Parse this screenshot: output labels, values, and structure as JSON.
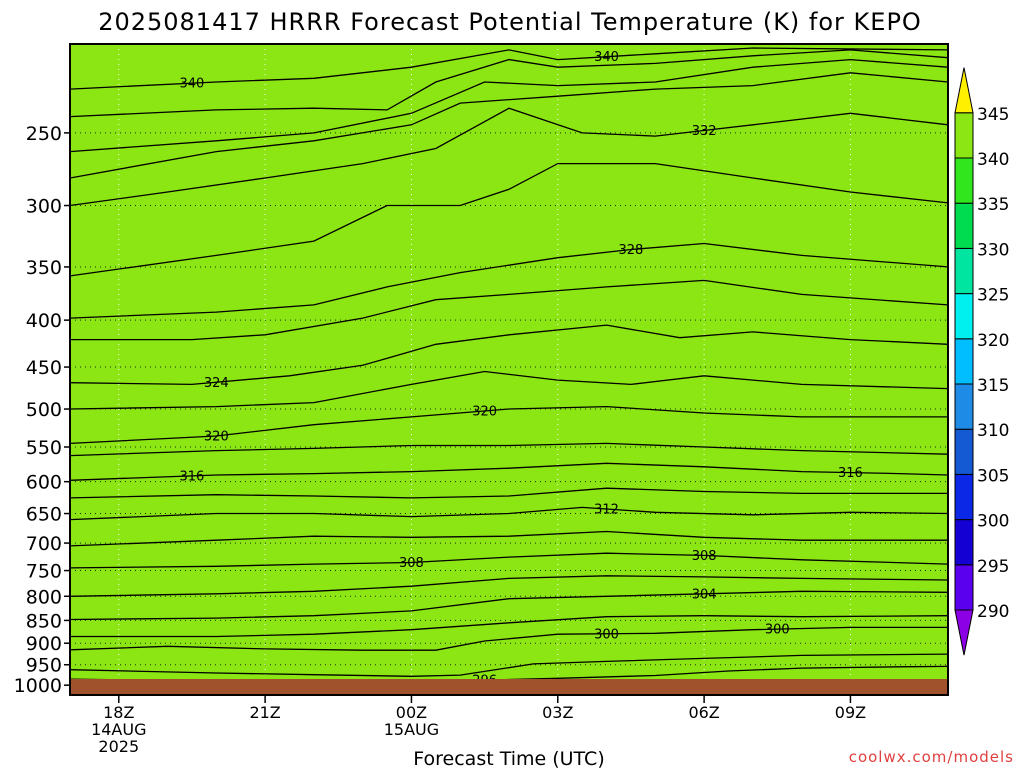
{
  "title": "2025081417 HRRR Forecast Potential Temperature (K) for KEPO",
  "watermark": "coolwx.com/models",
  "chart_data": {
    "type": "heatmap",
    "title": "2025081417 HRRR Forecast Potential Temperature (K) for KEPO",
    "xlabel": "Forecast Time (UTC)",
    "ylabel": "",
    "x_ticks": [
      {
        "hour": 0,
        "lines": [
          "18Z",
          "14AUG",
          "2025"
        ]
      },
      {
        "hour": 3,
        "lines": [
          "21Z"
        ]
      },
      {
        "hour": 6,
        "lines": [
          "00Z",
          "15AUG"
        ]
      },
      {
        "hour": 9,
        "lines": [
          "03Z"
        ]
      },
      {
        "hour": 12,
        "lines": [
          "06Z"
        ]
      },
      {
        "hour": 15,
        "lines": [
          "09Z"
        ]
      }
    ],
    "x_range_hours": [
      -1,
      17
    ],
    "y_scale": "log",
    "y_ticks": [
      250,
      300,
      350,
      400,
      450,
      500,
      550,
      600,
      650,
      700,
      750,
      800,
      850,
      900,
      950,
      1000
    ],
    "y_range_hpa": [
      200,
      1025
    ],
    "grid": true,
    "colorbar": {
      "labels": [
        290,
        295,
        300,
        305,
        310,
        315,
        320,
        325,
        330,
        335,
        340,
        345
      ],
      "colors": [
        "#8c00e6",
        "#5a00ee",
        "#1400d2",
        "#0a28e6",
        "#145ad2",
        "#1e8ce6",
        "#00beff",
        "#00f0f0",
        "#00e6a0",
        "#00dc50",
        "#32e61e",
        "#8ce614",
        "#d2f000",
        "#fff000"
      ],
      "extend": "both"
    },
    "terrain_color": "#a0522d",
    "contours": [
      {
        "value": 296,
        "label": "296",
        "points": [
          [
            -1,
            985
          ],
          [
            2,
            990
          ],
          [
            5,
            993
          ],
          [
            7,
            989
          ],
          [
            9,
            983
          ],
          [
            11,
            976
          ],
          [
            12.5,
            965
          ],
          [
            14,
            958
          ],
          [
            16,
            955
          ],
          [
            17,
            954
          ]
        ]
      },
      {
        "value": 298,
        "label": "",
        "points": [
          [
            -1,
            962
          ],
          [
            2,
            970
          ],
          [
            4,
            974
          ],
          [
            6,
            978
          ],
          [
            7,
            975
          ],
          [
            8.5,
            948
          ],
          [
            10,
            942
          ],
          [
            12,
            935
          ],
          [
            14,
            928
          ],
          [
            17,
            925
          ]
        ]
      },
      {
        "value": 300,
        "label": "300",
        "points": [
          [
            -1,
            915
          ],
          [
            1,
            907
          ],
          [
            3,
            913
          ],
          [
            5,
            916
          ],
          [
            6.5,
            916
          ],
          [
            7.5,
            895
          ],
          [
            9,
            880
          ],
          [
            11,
            878
          ],
          [
            13,
            870
          ],
          [
            15,
            865
          ],
          [
            17,
            865
          ]
        ]
      },
      {
        "value": 302,
        "label": "",
        "points": [
          [
            -1,
            885
          ],
          [
            2,
            885
          ],
          [
            4,
            880
          ],
          [
            6,
            870
          ],
          [
            8,
            855
          ],
          [
            10,
            842
          ],
          [
            12,
            840
          ],
          [
            14,
            842
          ],
          [
            17,
            840
          ]
        ]
      },
      {
        "value": 304,
        "label": "304",
        "points": [
          [
            -1,
            848
          ],
          [
            2,
            845
          ],
          [
            4,
            840
          ],
          [
            6,
            830
          ],
          [
            8,
            805
          ],
          [
            10,
            800
          ],
          [
            12,
            795
          ],
          [
            14,
            790
          ],
          [
            17,
            792
          ]
        ]
      },
      {
        "value": 306,
        "label": "",
        "points": [
          [
            -1,
            800
          ],
          [
            2,
            795
          ],
          [
            4,
            790
          ],
          [
            6,
            780
          ],
          [
            8,
            765
          ],
          [
            10,
            760
          ],
          [
            12,
            762
          ],
          [
            14,
            765
          ],
          [
            17,
            768
          ]
        ]
      },
      {
        "value": 308,
        "label": "308",
        "points": [
          [
            -1,
            745
          ],
          [
            2,
            742
          ],
          [
            4,
            738
          ],
          [
            6,
            735
          ],
          [
            8,
            725
          ],
          [
            10,
            718
          ],
          [
            12,
            722
          ],
          [
            14,
            730
          ],
          [
            17,
            738
          ]
        ]
      },
      {
        "value": 310,
        "label": "",
        "points": [
          [
            -1,
            705
          ],
          [
            2,
            695
          ],
          [
            4,
            688
          ],
          [
            6,
            690
          ],
          [
            8,
            688
          ],
          [
            10,
            680
          ],
          [
            12,
            690
          ],
          [
            14,
            695
          ],
          [
            17,
            695
          ]
        ]
      },
      {
        "value": 312,
        "label": "312",
        "points": [
          [
            -1,
            660
          ],
          [
            2,
            650
          ],
          [
            4,
            650
          ],
          [
            6,
            655
          ],
          [
            8,
            650
          ],
          [
            9.5,
            640
          ],
          [
            11,
            648
          ],
          [
            13,
            652
          ],
          [
            15,
            648
          ],
          [
            17,
            650
          ]
        ]
      },
      {
        "value": 314,
        "label": "",
        "points": [
          [
            -1,
            625
          ],
          [
            2,
            620
          ],
          [
            4,
            622
          ],
          [
            6,
            625
          ],
          [
            8,
            622
          ],
          [
            10,
            610
          ],
          [
            12,
            615
          ],
          [
            14,
            618
          ],
          [
            17,
            618
          ]
        ]
      },
      {
        "value": 316,
        "label": "316",
        "points": [
          [
            -1,
            598
          ],
          [
            2,
            590
          ],
          [
            4,
            588
          ],
          [
            6,
            585
          ],
          [
            8,
            580
          ],
          [
            10,
            573
          ],
          [
            12,
            578
          ],
          [
            14,
            585
          ],
          [
            16,
            588
          ],
          [
            17,
            590
          ]
        ]
      },
      {
        "value": 318,
        "label": "",
        "points": [
          [
            -1,
            562
          ],
          [
            2,
            555
          ],
          [
            4,
            552
          ],
          [
            6,
            548
          ],
          [
            8,
            548
          ],
          [
            10,
            545
          ],
          [
            12,
            550
          ],
          [
            14,
            555
          ],
          [
            17,
            560
          ]
        ]
      },
      {
        "value": 320,
        "label": "320",
        "points": [
          [
            -1,
            545
          ],
          [
            2,
            535
          ],
          [
            4,
            520
          ],
          [
            6,
            510
          ],
          [
            8,
            500
          ],
          [
            10,
            497
          ],
          [
            12,
            505
          ],
          [
            14,
            510
          ],
          [
            17,
            510
          ]
        ]
      },
      {
        "value": 322,
        "label": "",
        "points": [
          [
            -1,
            500
          ],
          [
            2,
            497
          ],
          [
            4,
            492
          ],
          [
            6,
            470
          ],
          [
            7.5,
            455
          ],
          [
            9,
            465
          ],
          [
            10.5,
            470
          ],
          [
            12,
            460
          ],
          [
            14,
            470
          ],
          [
            17,
            475
          ]
        ]
      },
      {
        "value": 324,
        "label": "324",
        "points": [
          [
            -1,
            468
          ],
          [
            1.5,
            470
          ],
          [
            3.5,
            460
          ],
          [
            5,
            448
          ],
          [
            6.5,
            425
          ],
          [
            8,
            415
          ],
          [
            10,
            405
          ],
          [
            11.5,
            418
          ],
          [
            13,
            412
          ],
          [
            15,
            420
          ],
          [
            17,
            425
          ]
        ]
      },
      {
        "value": 326,
        "label": "",
        "points": [
          [
            -1,
            420
          ],
          [
            1.5,
            420
          ],
          [
            3,
            415
          ],
          [
            5,
            398
          ],
          [
            6.5,
            380
          ],
          [
            8,
            375
          ],
          [
            10,
            368
          ],
          [
            12,
            362
          ],
          [
            14,
            375
          ],
          [
            17,
            385
          ]
        ]
      },
      {
        "value": 328,
        "label": "328",
        "points": [
          [
            -1,
            398
          ],
          [
            2,
            392
          ],
          [
            4,
            385
          ],
          [
            5.5,
            368
          ],
          [
            7,
            355
          ],
          [
            9,
            342
          ],
          [
            10.5,
            335
          ],
          [
            12,
            330
          ],
          [
            14,
            340
          ],
          [
            17,
            350
          ]
        ]
      },
      {
        "value": 330,
        "label": "",
        "points": [
          [
            -1,
            358
          ],
          [
            2,
            340
          ],
          [
            4,
            328
          ],
          [
            5.5,
            300
          ],
          [
            7,
            300
          ],
          [
            8,
            288
          ],
          [
            9,
            270
          ],
          [
            11,
            270
          ],
          [
            13,
            280
          ],
          [
            15,
            290
          ],
          [
            17,
            298
          ]
        ]
      },
      {
        "value": 332,
        "label": "332",
        "points": [
          [
            -1,
            300
          ],
          [
            1,
            290
          ],
          [
            3,
            280
          ],
          [
            5,
            270
          ],
          [
            6.5,
            260
          ],
          [
            8,
            235
          ],
          [
            9.5,
            250
          ],
          [
            11,
            252
          ],
          [
            13,
            245
          ],
          [
            15,
            238
          ],
          [
            17,
            245
          ]
        ]
      },
      {
        "value": 334,
        "label": "",
        "points": [
          [
            -1,
            280
          ],
          [
            2,
            262
          ],
          [
            4,
            255
          ],
          [
            6,
            245
          ],
          [
            7,
            232
          ],
          [
            9,
            228
          ],
          [
            11,
            224
          ],
          [
            13,
            222
          ],
          [
            15,
            215
          ],
          [
            17,
            220
          ]
        ]
      },
      {
        "value": 336,
        "label": "",
        "points": [
          [
            -1,
            262
          ],
          [
            2,
            255
          ],
          [
            4,
            250
          ],
          [
            6,
            238
          ],
          [
            7.5,
            220
          ],
          [
            9,
            222
          ],
          [
            11,
            220
          ],
          [
            13,
            212
          ],
          [
            15,
            208
          ],
          [
            17,
            212
          ]
        ]
      },
      {
        "value": 338,
        "label": "",
        "points": [
          [
            -1,
            240
          ],
          [
            2,
            236
          ],
          [
            4,
            235
          ],
          [
            5.5,
            236
          ],
          [
            6.5,
            220
          ],
          [
            8,
            208
          ],
          [
            9,
            212
          ],
          [
            11,
            210
          ],
          [
            13,
            206
          ],
          [
            15,
            203
          ],
          [
            17,
            207
          ]
        ]
      },
      {
        "value": 340,
        "label": "340",
        "points": [
          [
            -1,
            224
          ],
          [
            2,
            220
          ],
          [
            4,
            218
          ],
          [
            6,
            212
          ],
          [
            8,
            203
          ],
          [
            9,
            208
          ],
          [
            11,
            205
          ],
          [
            13,
            202
          ],
          [
            17,
            203
          ]
        ]
      }
    ]
  }
}
